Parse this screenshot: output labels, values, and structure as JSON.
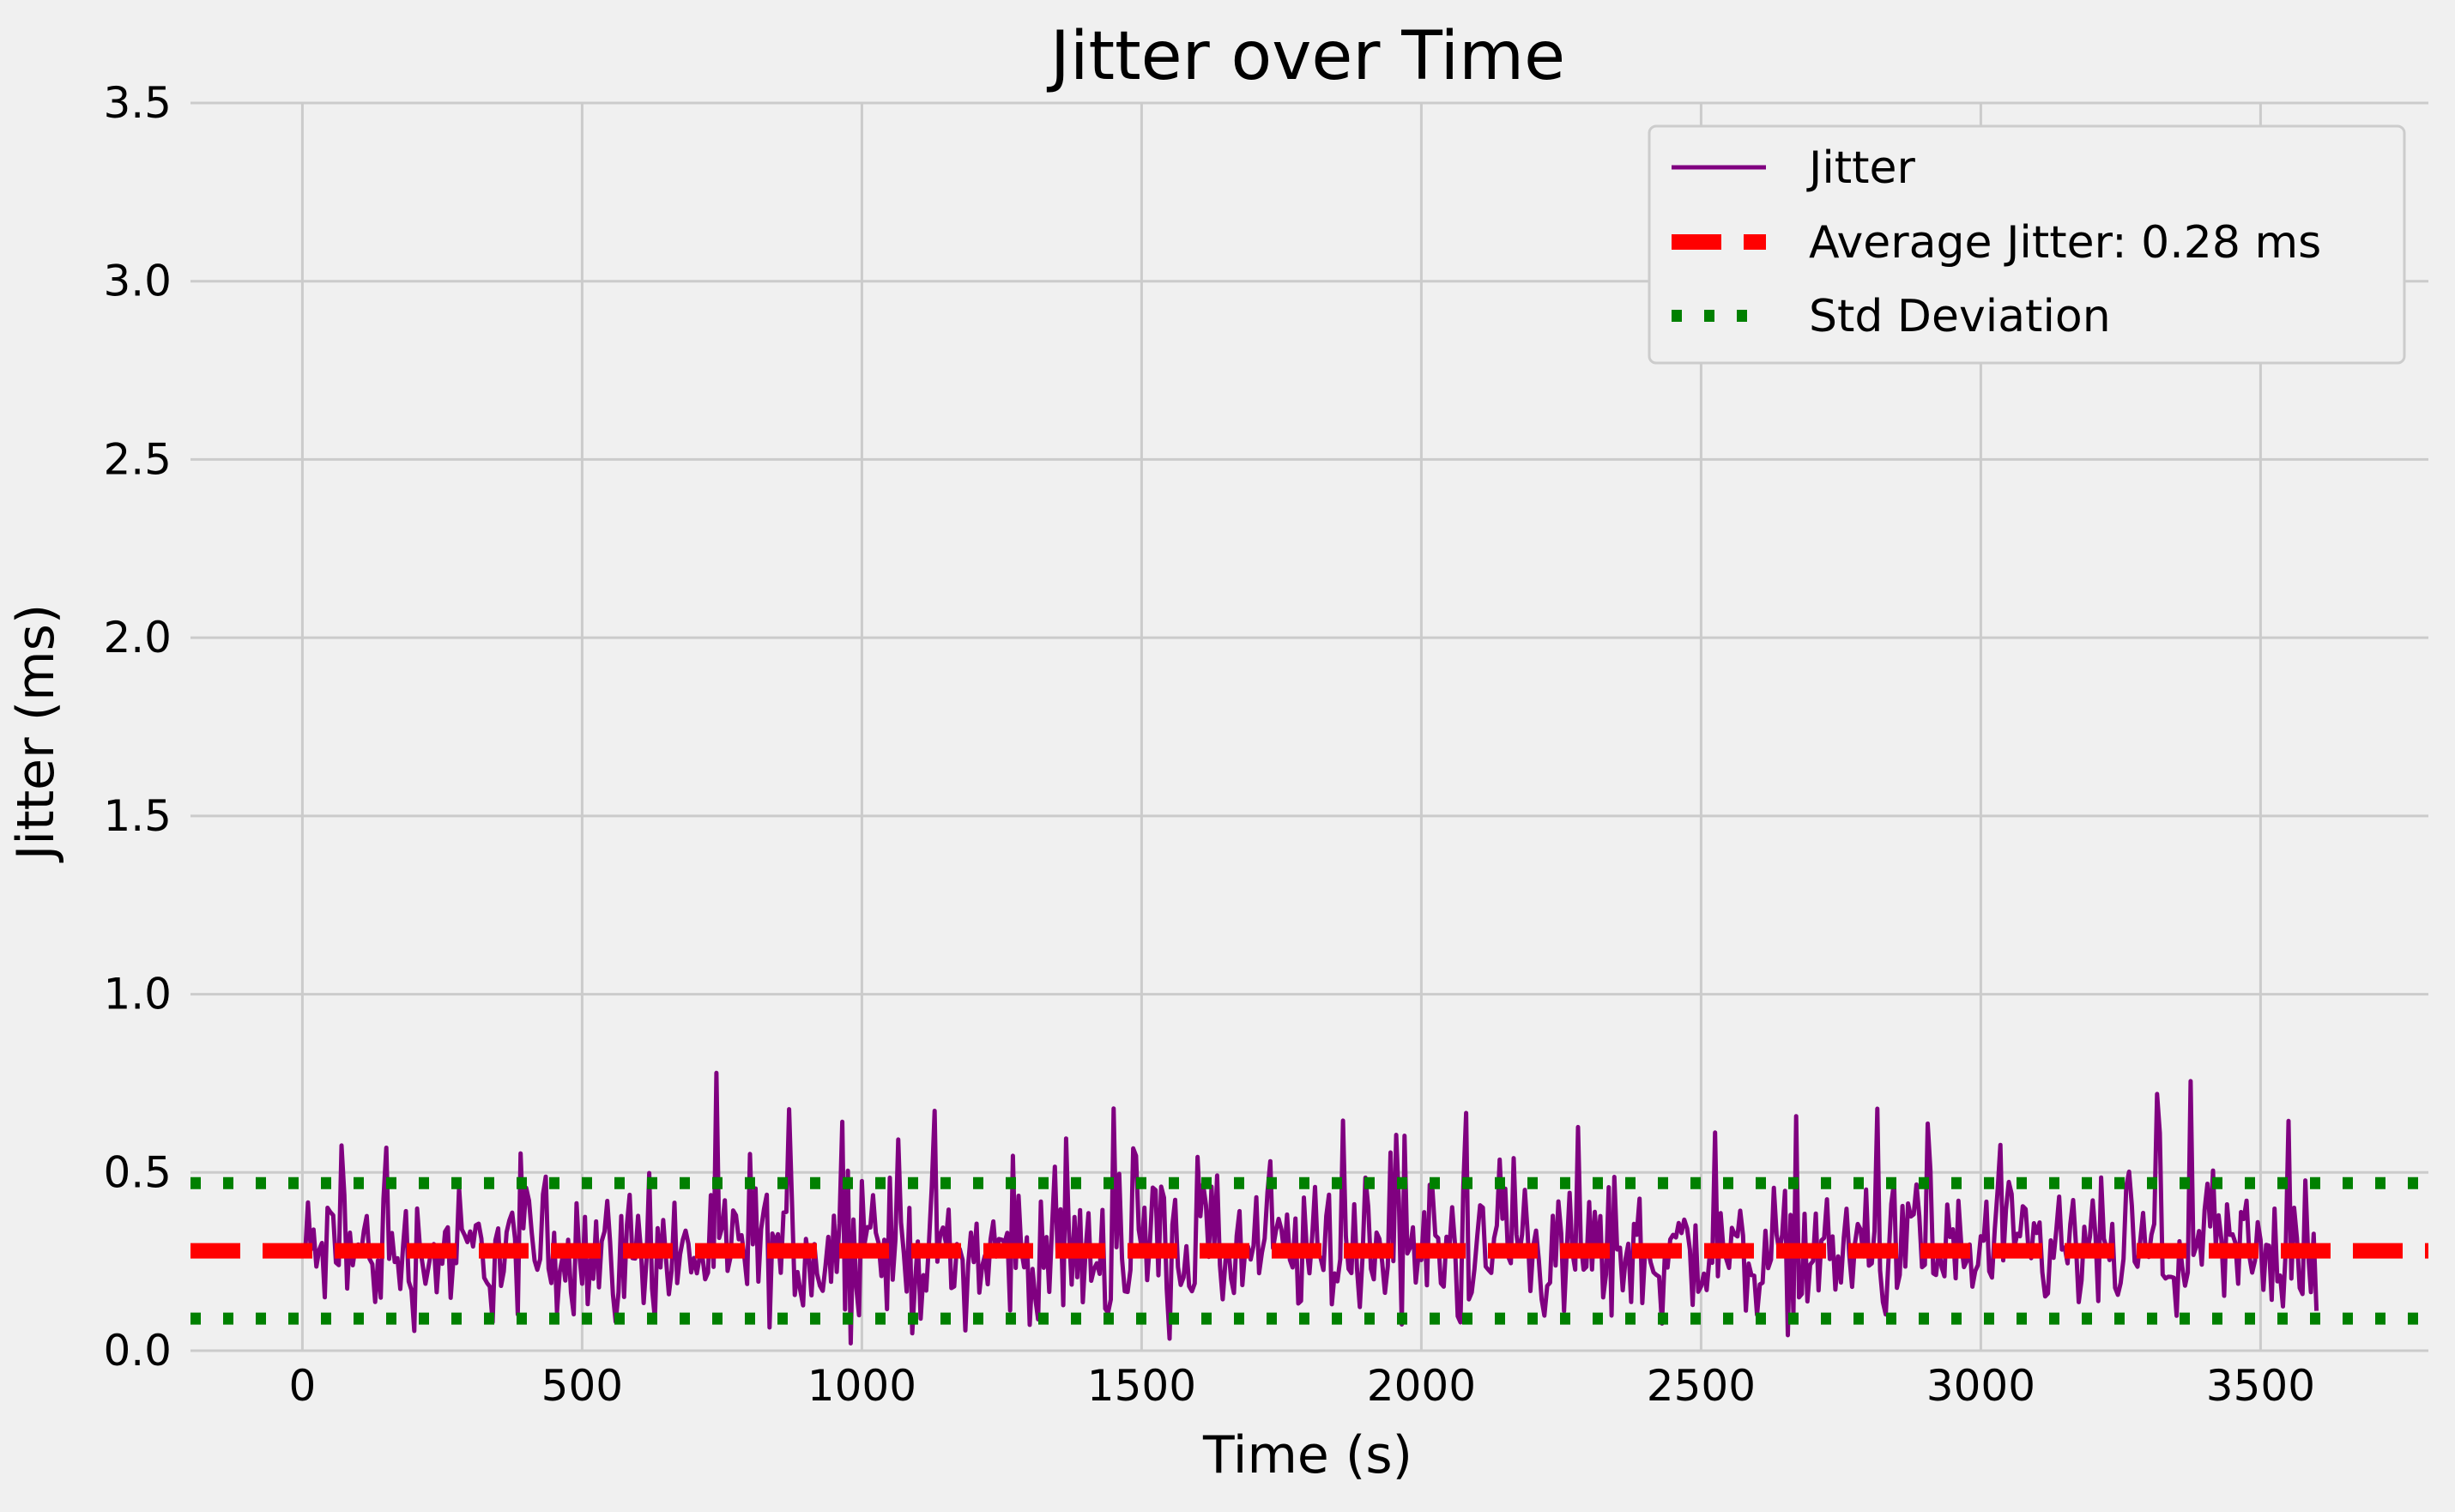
{
  "chart_data": {
    "type": "line",
    "title": "Jitter over Time",
    "xlabel": "Time (s)",
    "ylabel": "Jitter (ms)",
    "xlim": [
      -200,
      3800
    ],
    "ylim": [
      0,
      3.5
    ],
    "xticks": [
      0,
      500,
      1000,
      1500,
      2000,
      2500,
      3000,
      3500
    ],
    "yticks": [
      0.0,
      0.5,
      1.0,
      1.5,
      2.0,
      2.5,
      3.0,
      3.5
    ],
    "grid": true,
    "legend_position": "top-right",
    "series": [
      {
        "name": "Jitter",
        "color": "#800080",
        "style": "solid",
        "x_range": [
          0,
          3600
        ],
        "sample_interval": 5,
        "value_range": [
          0.0,
          0.78
        ],
        "values_note": "noisy signal fluctuating around 0.28 ms"
      }
    ],
    "reference_lines": [
      {
        "name": "Average Jitter: 0.28 ms",
        "value": 0.28,
        "color": "#ff0000",
        "style": "dashed"
      },
      {
        "name": "Std Deviation",
        "value": 0.47,
        "color": "#008000",
        "style": "dotted"
      },
      {
        "name": "Std Deviation",
        "value": 0.09,
        "color": "#008000",
        "style": "dotted",
        "legend": false
      }
    ]
  }
}
